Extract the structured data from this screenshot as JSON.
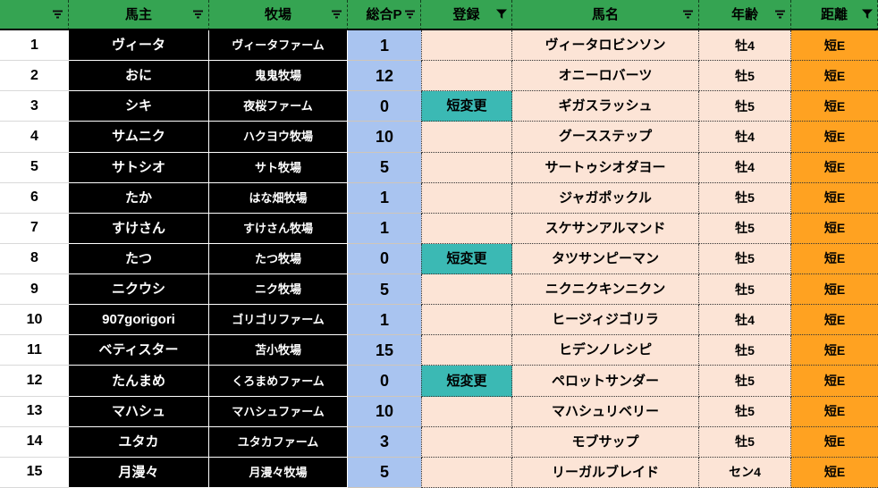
{
  "header": {
    "columns": [
      {
        "label": "",
        "filter": "dropdown"
      },
      {
        "label": "馬主",
        "filter": "dropdown"
      },
      {
        "label": "牧場",
        "filter": "dropdown"
      },
      {
        "label": "総合P",
        "filter": "dropdown"
      },
      {
        "label": "登録",
        "filter": "funnel"
      },
      {
        "label": "馬名",
        "filter": "dropdown"
      },
      {
        "label": "年齢",
        "filter": "dropdown"
      },
      {
        "label": "距離",
        "filter": "funnel"
      }
    ]
  },
  "rows": [
    {
      "num": "1",
      "owner": "ヴィータ",
      "farm": "ヴィータファーム",
      "points": "1",
      "registration": "",
      "horse": "ヴィータロビンソン",
      "age": "牡4",
      "distance": "短E"
    },
    {
      "num": "2",
      "owner": "おに",
      "farm": "鬼鬼牧場",
      "points": "12",
      "registration": "",
      "horse": "オニーロバーツ",
      "age": "牡5",
      "distance": "短E"
    },
    {
      "num": "3",
      "owner": "シキ",
      "farm": "夜桜ファーム",
      "points": "0",
      "registration": "短変更",
      "horse": "ギガスラッシュ",
      "age": "牡5",
      "distance": "短E"
    },
    {
      "num": "4",
      "owner": "サムニク",
      "farm": "ハクヨウ牧場",
      "points": "10",
      "registration": "",
      "horse": "グースステップ",
      "age": "牡4",
      "distance": "短E"
    },
    {
      "num": "5",
      "owner": "サトシオ",
      "farm": "サト牧場",
      "points": "5",
      "registration": "",
      "horse": "サートゥシオダヨー",
      "age": "牡4",
      "distance": "短E"
    },
    {
      "num": "6",
      "owner": "たか",
      "farm": "はな畑牧場",
      "points": "1",
      "registration": "",
      "horse": "ジャガポックル",
      "age": "牡5",
      "distance": "短E"
    },
    {
      "num": "7",
      "owner": "すけさん",
      "farm": "すけさん牧場",
      "points": "1",
      "registration": "",
      "horse": "スケサンアルマンド",
      "age": "牡5",
      "distance": "短E"
    },
    {
      "num": "8",
      "owner": "たつ",
      "farm": "たつ牧場",
      "points": "0",
      "registration": "短変更",
      "horse": "タツサンピーマン",
      "age": "牡5",
      "distance": "短E"
    },
    {
      "num": "9",
      "owner": "ニクウシ",
      "farm": "ニク牧場",
      "points": "5",
      "registration": "",
      "horse": "ニクニクキンニクン",
      "age": "牡5",
      "distance": "短E"
    },
    {
      "num": "10",
      "owner": "907gorigori",
      "farm": "ゴリゴリファーム",
      "points": "1",
      "registration": "",
      "horse": "ヒージィジゴリラ",
      "age": "牡4",
      "distance": "短E"
    },
    {
      "num": "11",
      "owner": "ベティスター",
      "farm": "苫小牧場",
      "points": "15",
      "registration": "",
      "horse": "ヒデンノレシピ",
      "age": "牡5",
      "distance": "短E"
    },
    {
      "num": "12",
      "owner": "たんまめ",
      "farm": "くろまめファーム",
      "points": "0",
      "registration": "短変更",
      "horse": "ペロットサンダー",
      "age": "牡5",
      "distance": "短E"
    },
    {
      "num": "13",
      "owner": "マハシュ",
      "farm": "マハシュファーム",
      "points": "10",
      "registration": "",
      "horse": "マハシュリベリー",
      "age": "牡5",
      "distance": "短E"
    },
    {
      "num": "14",
      "owner": "ユタカ",
      "farm": "ユタカファーム",
      "points": "3",
      "registration": "",
      "horse": "モブサップ",
      "age": "牡5",
      "distance": "短E"
    },
    {
      "num": "15",
      "owner": "月漫々",
      "farm": "月漫々牧場",
      "points": "5",
      "registration": "",
      "horse": "リーガルブレイド",
      "age": "セン4",
      "distance": "短E"
    }
  ],
  "colors": {
    "header_green": "#35A452",
    "points_blue": "#A9C4F0",
    "cell_peach": "#FCE4D6",
    "registration_teal": "#3BB9B4",
    "distance_orange": "#FFA221",
    "owner_black": "#000000"
  }
}
